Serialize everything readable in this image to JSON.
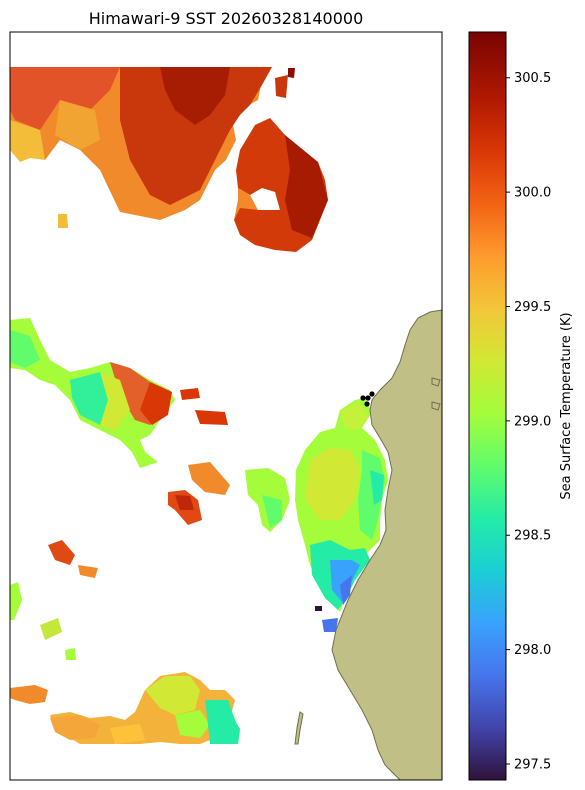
{
  "chart_data": {
    "type": "heatmap",
    "title": "Himawari-9 SST 20260328140000",
    "colorbar": {
      "label": "Sea Surface Temperature (K)",
      "colormap": "turbo",
      "vmin": 297.43,
      "vmax": 300.7,
      "ticks": [
        297.5,
        298.0,
        298.5,
        299.0,
        299.5,
        300.0,
        300.5
      ],
      "tick_labels": [
        "297.5",
        "298.0",
        "298.5",
        "299.0",
        "299.5",
        "300.0",
        "300.5"
      ],
      "position": "right"
    },
    "map": {
      "land_color": "#bfbf86",
      "land_edge_color": "#6f6f4f",
      "ocean_missing_color": "#ffffff"
    },
    "sst_regions": [
      {
        "region": "north",
        "value_range": [
          299.4,
          300.7
        ]
      },
      {
        "region": "northeast lobe",
        "value_range": [
          300.0,
          300.6
        ]
      },
      {
        "region": "middle-west band",
        "value_range": [
          298.8,
          300.3
        ]
      },
      {
        "region": "near coast east",
        "value_range": [
          297.9,
          299.4
        ]
      },
      {
        "region": "south",
        "value_range": [
          298.4,
          300.1
        ]
      }
    ],
    "grid": false,
    "legend": "none"
  }
}
